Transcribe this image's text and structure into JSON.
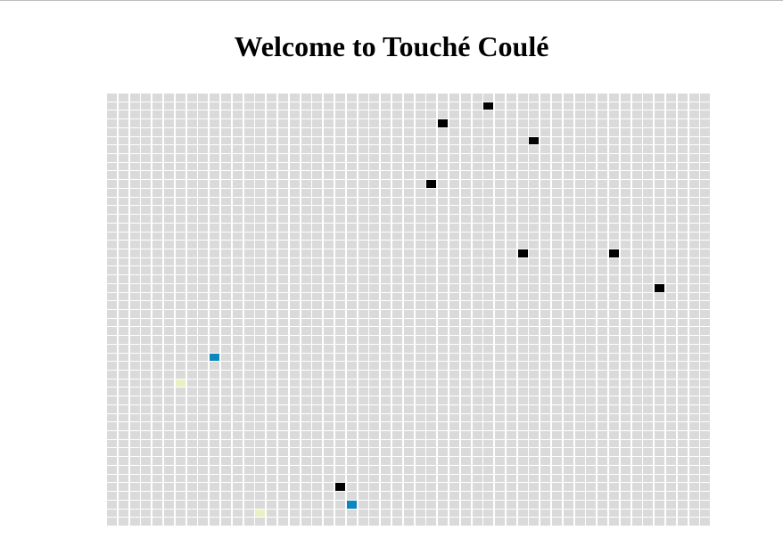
{
  "page": {
    "title": "Welcome to Touché Coulé"
  },
  "board": {
    "cols": 53,
    "rows": 50,
    "colors": {
      "empty": "#dadada",
      "ship": "#000000",
      "hit": "#0b87bd",
      "miss": "#eaf0c3"
    },
    "marked_cells": [
      {
        "row": 1,
        "col": 33,
        "state": "ship"
      },
      {
        "row": 3,
        "col": 29,
        "state": "ship"
      },
      {
        "row": 5,
        "col": 37,
        "state": "ship"
      },
      {
        "row": 10,
        "col": 28,
        "state": "ship"
      },
      {
        "row": 18,
        "col": 36,
        "state": "ship"
      },
      {
        "row": 18,
        "col": 44,
        "state": "ship"
      },
      {
        "row": 22,
        "col": 48,
        "state": "ship"
      },
      {
        "row": 30,
        "col": 9,
        "state": "hit"
      },
      {
        "row": 33,
        "col": 6,
        "state": "miss"
      },
      {
        "row": 45,
        "col": 20,
        "state": "ship"
      },
      {
        "row": 47,
        "col": 21,
        "state": "hit"
      },
      {
        "row": 48,
        "col": 13,
        "state": "miss"
      }
    ]
  }
}
